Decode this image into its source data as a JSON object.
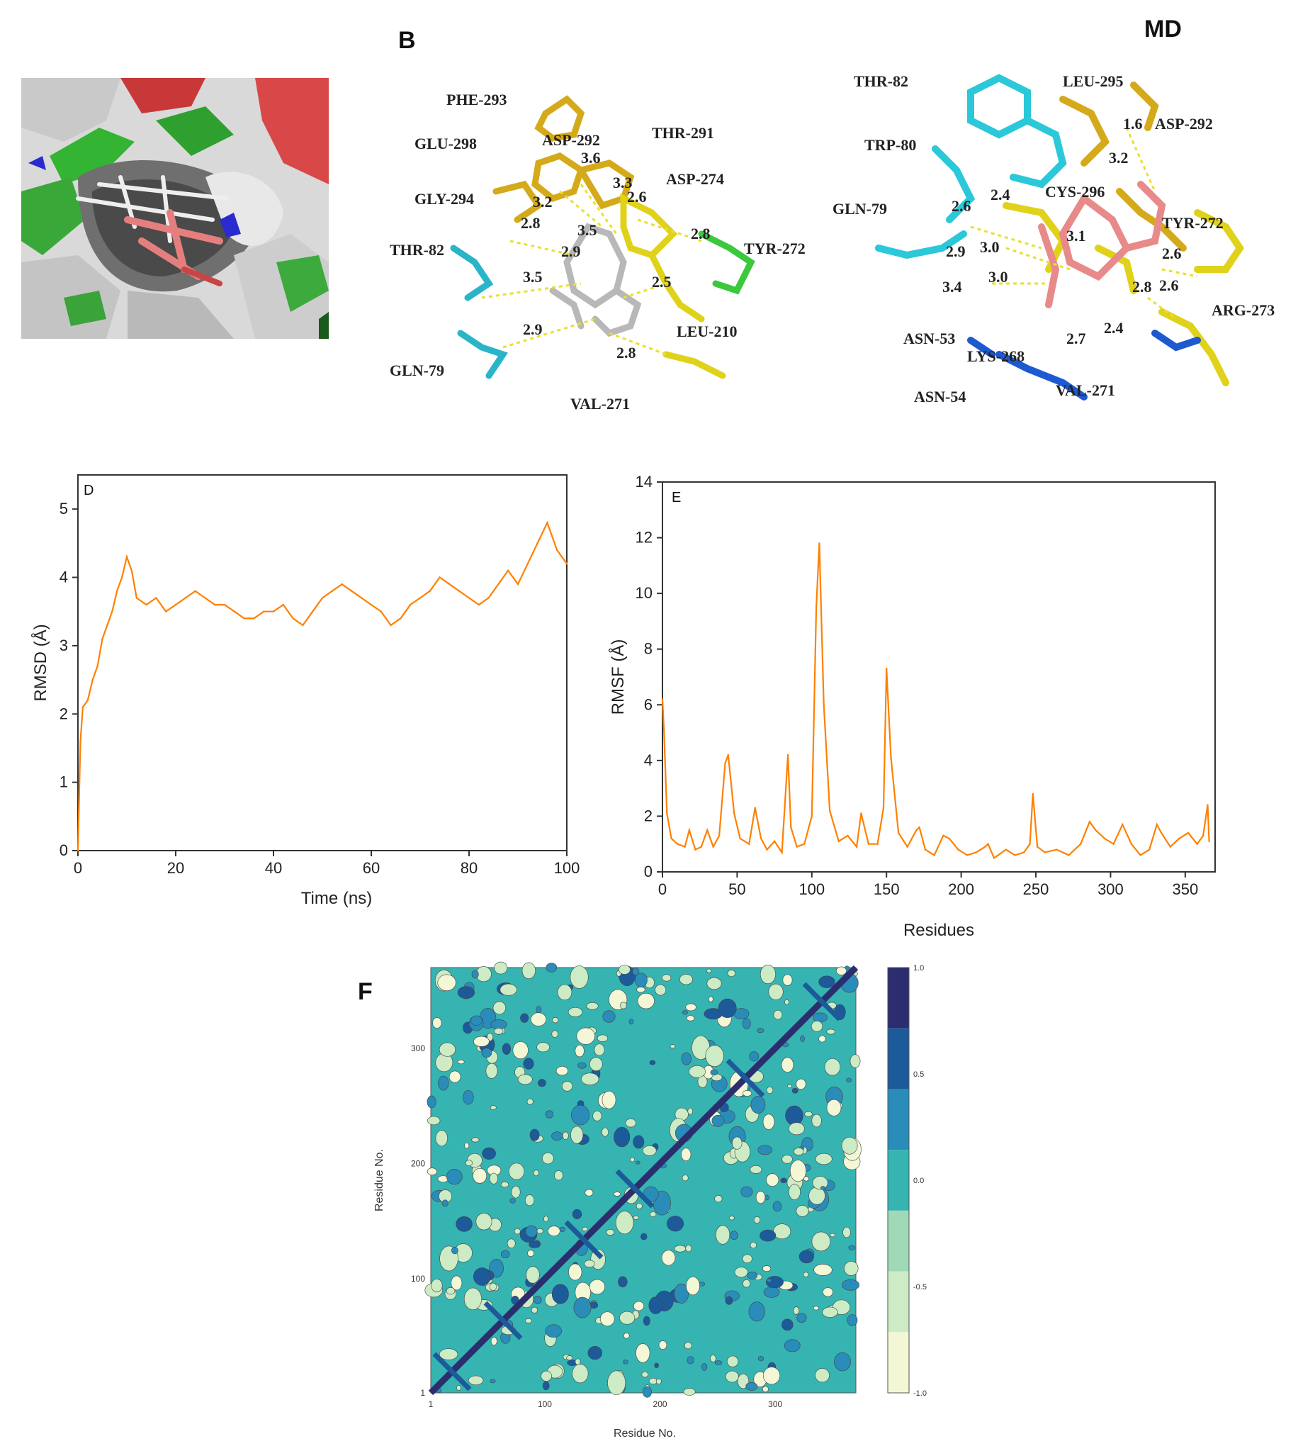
{
  "figure": {
    "panel_b": {
      "letter": "B",
      "residues": [
        "PHE-293",
        "GLU-298",
        "ASP-292",
        "THR-291",
        "ASP-274",
        "GLY-294",
        "TYR-272",
        "THR-82",
        "LEU-210",
        "GLN-79",
        "VAL-271"
      ],
      "distances": [
        "3.6",
        "3.3",
        "3.2",
        "2.6",
        "2.8",
        "3.5",
        "2.8",
        "2.9",
        "3.5",
        "2.5",
        "2.9",
        "2.8"
      ]
    },
    "panel_md": {
      "letter": "MD",
      "residues": [
        "THR-82",
        "LEU-295",
        "ASP-292",
        "TRP-80",
        "CYS-296",
        "GLN-79",
        "TYR-272",
        "ARG-273",
        "ASN-53",
        "LYS-268",
        "ASN-54",
        "VAL-271"
      ],
      "distances": [
        "1.6",
        "3.2",
        "2.6",
        "2.4",
        "3.1",
        "2.9",
        "3.0",
        "3.0",
        "3.4",
        "2.6",
        "2.8",
        "2.6",
        "2.7",
        "2.4"
      ]
    },
    "panel_d": {
      "letter": "D"
    },
    "panel_e": {
      "letter": "E"
    },
    "panel_f": {
      "letter": "F"
    }
  },
  "chart_data": [
    {
      "type": "line",
      "panel": "D",
      "xlabel": "Time (ns)",
      "ylabel": "RMSD (Å)",
      "xlim": [
        0,
        100
      ],
      "ylim": [
        0,
        5.5
      ],
      "xticks": [
        "0",
        "20",
        "40",
        "60",
        "80",
        "100"
      ],
      "yticks": [
        "0",
        "1",
        "2",
        "3",
        "4",
        "5"
      ],
      "color": "#ff8000",
      "x": [
        0,
        0.5,
        1,
        2,
        3,
        4,
        5,
        6,
        7,
        8,
        9,
        10,
        11,
        12,
        14,
        16,
        18,
        20,
        22,
        24,
        26,
        28,
        30,
        32,
        34,
        36,
        38,
        40,
        42,
        44,
        46,
        48,
        50,
        52,
        54,
        56,
        58,
        60,
        62,
        64,
        66,
        68,
        70,
        72,
        74,
        76,
        78,
        80,
        82,
        84,
        86,
        88,
        90,
        92,
        94,
        96,
        98,
        100
      ],
      "y": [
        0,
        1.6,
        2.1,
        2.2,
        2.5,
        2.7,
        3.1,
        3.3,
        3.5,
        3.8,
        4.0,
        4.3,
        4.1,
        3.7,
        3.6,
        3.7,
        3.5,
        3.6,
        3.7,
        3.8,
        3.7,
        3.6,
        3.6,
        3.5,
        3.4,
        3.4,
        3.5,
        3.5,
        3.6,
        3.4,
        3.3,
        3.5,
        3.7,
        3.8,
        3.9,
        3.8,
        3.7,
        3.6,
        3.5,
        3.3,
        3.4,
        3.6,
        3.7,
        3.8,
        4.0,
        3.9,
        3.8,
        3.7,
        3.6,
        3.7,
        3.9,
        4.1,
        3.9,
        4.2,
        4.5,
        4.8,
        4.4,
        4.2
      ]
    },
    {
      "type": "line",
      "panel": "E",
      "xlabel": "Residues",
      "ylabel": "RMSF (Å)",
      "xlim": [
        0,
        370
      ],
      "ylim": [
        0,
        14
      ],
      "xticks": [
        "0",
        "50",
        "100",
        "150",
        "200",
        "250",
        "300",
        "350"
      ],
      "yticks": [
        "0",
        "2",
        "4",
        "6",
        "8",
        "10",
        "12",
        "14"
      ],
      "color": "#ff8000",
      "x": [
        0,
        1,
        3,
        6,
        10,
        15,
        18,
        22,
        26,
        30,
        34,
        38,
        42,
        44,
        48,
        52,
        58,
        62,
        66,
        70,
        75,
        80,
        84,
        86,
        90,
        95,
        100,
        103,
        105,
        108,
        112,
        118,
        124,
        130,
        133,
        138,
        144,
        148,
        150,
        153,
        158,
        164,
        170,
        172,
        176,
        182,
        188,
        192,
        198,
        204,
        210,
        216,
        218,
        222,
        230,
        236,
        242,
        246,
        248,
        251,
        256,
        264,
        272,
        280,
        286,
        290,
        296,
        302,
        308,
        314,
        320,
        326,
        331,
        334,
        340,
        346,
        352,
        358,
        362,
        365,
        366
      ],
      "y": [
        6.2,
        5.1,
        2.1,
        1.2,
        1.0,
        0.9,
        1.5,
        0.8,
        0.9,
        1.5,
        0.9,
        1.3,
        3.9,
        4.2,
        2.1,
        1.2,
        1.0,
        2.3,
        1.2,
        0.8,
        1.1,
        0.7,
        4.2,
        1.6,
        0.9,
        1.0,
        2.0,
        9.5,
        11.8,
        6.0,
        2.2,
        1.1,
        1.3,
        0.9,
        2.1,
        1.0,
        1.0,
        2.3,
        7.3,
        4.1,
        1.4,
        0.9,
        1.5,
        1.6,
        0.8,
        0.6,
        1.3,
        1.2,
        0.8,
        0.6,
        0.7,
        0.9,
        1.0,
        0.5,
        0.8,
        0.6,
        0.7,
        1.0,
        2.8,
        0.9,
        0.7,
        0.8,
        0.6,
        1.0,
        1.8,
        1.5,
        1.2,
        1.0,
        1.7,
        1.0,
        0.6,
        0.8,
        1.7,
        1.4,
        0.9,
        1.2,
        1.4,
        1.0,
        1.3,
        2.4,
        1.1
      ]
    },
    {
      "type": "heatmap",
      "panel": "F",
      "xlabel": "Residue No.",
      "ylabel": "Residue No.",
      "xticks": [
        "1",
        "100",
        "200",
        "300"
      ],
      "yticks": [
        "1",
        "100",
        "200",
        "300"
      ],
      "colorbar_ticks": [
        "1.0",
        "0.5",
        "0.0",
        "-0.5",
        "-1.0"
      ],
      "colorbar_colors": [
        "#2b2d6e",
        "#1d5a9a",
        "#2a8cb8",
        "#35b4b2",
        "#9fd9b8",
        "#cdebc4",
        "#f3f7d6"
      ]
    }
  ]
}
